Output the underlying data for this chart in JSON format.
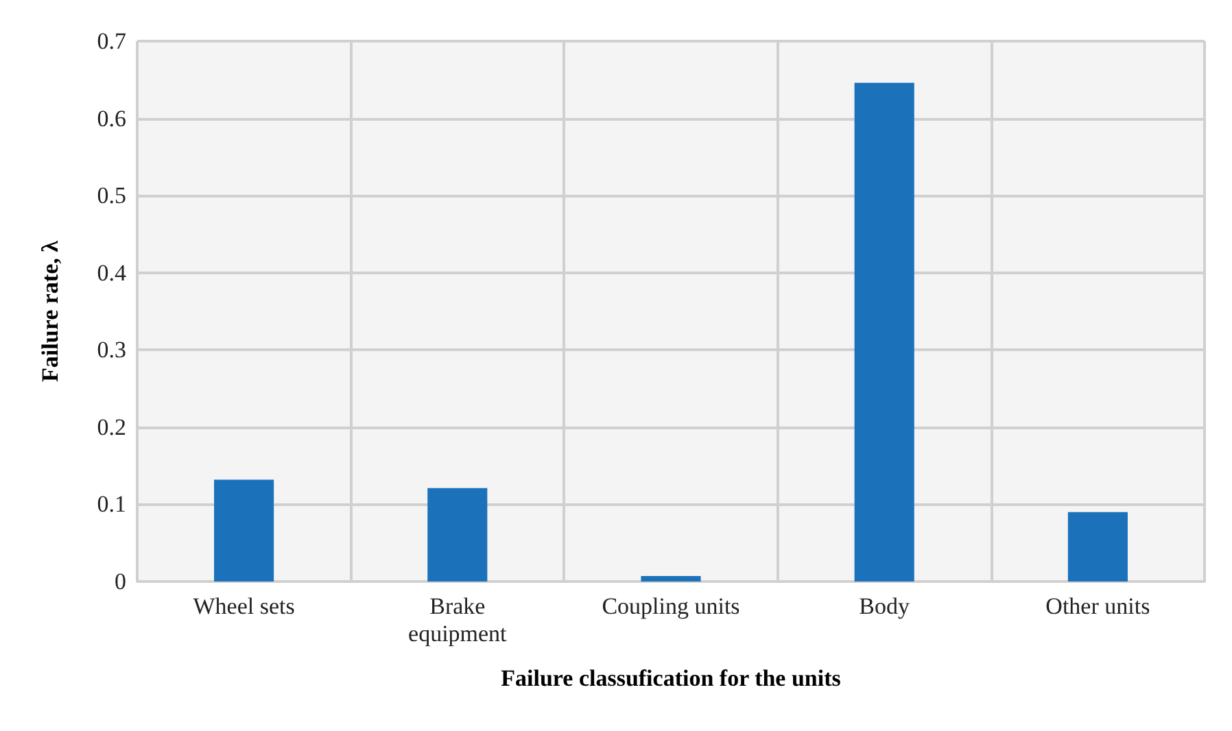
{
  "chart_data": {
    "type": "bar",
    "xlabel": "Failure classufication for the units",
    "ylabel": "Failure rate, λ",
    "categories": [
      "Wheel sets",
      "Brake\nequipment",
      "Coupling units",
      "Body",
      "Other units"
    ],
    "values": [
      0.132,
      0.121,
      0.007,
      0.646,
      0.09
    ],
    "color": "#1b72bb",
    "ylim": [
      0,
      0.7
    ],
    "yticks": [
      0,
      0.1,
      0.2,
      0.3,
      0.4,
      0.5,
      0.6,
      0.7
    ],
    "grid": true
  }
}
